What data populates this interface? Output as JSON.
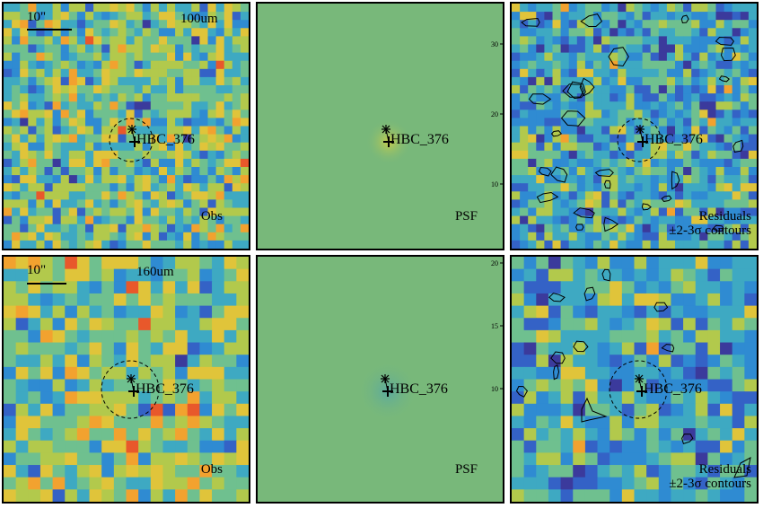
{
  "panels": [
    {
      "id": "obs-100",
      "row": 0,
      "col": 0,
      "kind": "obs",
      "wavelength": "100um",
      "scale_label": "10\"",
      "type_label": "Obs",
      "source": "HBC_376",
      "circle": true,
      "seed": 11
    },
    {
      "id": "psf-100",
      "row": 0,
      "col": 1,
      "kind": "psf",
      "type_label": "PSF",
      "source": "HBC_376",
      "circle": false,
      "seed": 0
    },
    {
      "id": "res-100",
      "row": 0,
      "col": 2,
      "kind": "res",
      "type_label_1": "Residuals",
      "type_label_2": "±2-3σ contours",
      "source": "HBC_376",
      "circle": true,
      "seed": 23
    },
    {
      "id": "obs-160",
      "row": 1,
      "col": 0,
      "kind": "obs",
      "wavelength": "160um",
      "scale_label": "10\"",
      "type_label": "Obs",
      "source": "HBC_376",
      "circle": true,
      "seed": 37
    },
    {
      "id": "psf-160",
      "row": 1,
      "col": 1,
      "kind": "psf",
      "type_label": "PSF",
      "source": "HBC_376",
      "circle": false,
      "seed": 0
    },
    {
      "id": "res-160",
      "row": 1,
      "col": 2,
      "kind": "res",
      "type_label_1": "Residuals",
      "type_label_2": "±2-3σ contours",
      "source": "HBC_376",
      "circle": true,
      "seed": 41
    }
  ],
  "psf_ticks": {
    "top": [
      "30",
      "20",
      "10"
    ],
    "bottom": [
      "20",
      "15",
      "10"
    ]
  },
  "colors": {
    "psf_background": "#78b87a",
    "psf_core_top": "#c8cc4a",
    "psf_core_bottom": "#5aa9a0"
  }
}
